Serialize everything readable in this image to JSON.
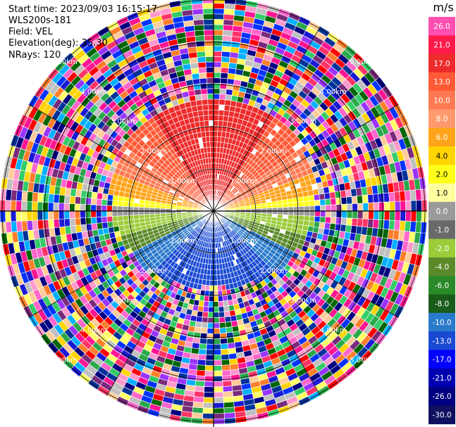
{
  "header": {
    "start_time": "Start time: 2023/09/03 16:15:17",
    "instrument": "WLS200s-181",
    "field": "Field: VEL",
    "elevation": "Elevation(deg): 35.30",
    "nrays": "NRays: 120"
  },
  "chart_data": {
    "type": "heatmap",
    "projection": "polar (PPI)",
    "range_rings": [
      {
        "value": 1.0,
        "label": "1.00km"
      },
      {
        "value": 2.0,
        "label": "2.00km"
      },
      {
        "value": 3.0,
        "label": "3.00km"
      },
      {
        "value": 4.0,
        "label": "4.00km"
      },
      {
        "value": 5.0,
        "label": "5.00km"
      }
    ],
    "colorbar": {
      "unit": "m/s",
      "ticks": [
        "26.0",
        "21.0",
        "17.0",
        "13.0",
        "10.0",
        "8.0",
        "6.0",
        "4.0",
        "2.0",
        "1.0",
        "0.0",
        "-1.0",
        "-2.0",
        "-4.0",
        "-6.0",
        "-8.0",
        "-10.0",
        "-13.0",
        "-17.0",
        "-21.0",
        "-26.0",
        "-30.0"
      ],
      "colors": [
        "#ff4fb0",
        "#ff1a4a",
        "#ee2b2b",
        "#ff5a36",
        "#ff7a52",
        "#ff9a6e",
        "#ffa31a",
        "#ffd400",
        "#ffff1a",
        "#ffffa0",
        "#9a9a9a",
        "#6a6a6a",
        "#9ccc3a",
        "#5c8a2a",
        "#2a8a2a",
        "#1a5c1a",
        "#2a7acc",
        "#1a4ad4",
        "#0000ff",
        "#0000b0",
        "#000080",
        "#101060"
      ]
    }
  }
}
